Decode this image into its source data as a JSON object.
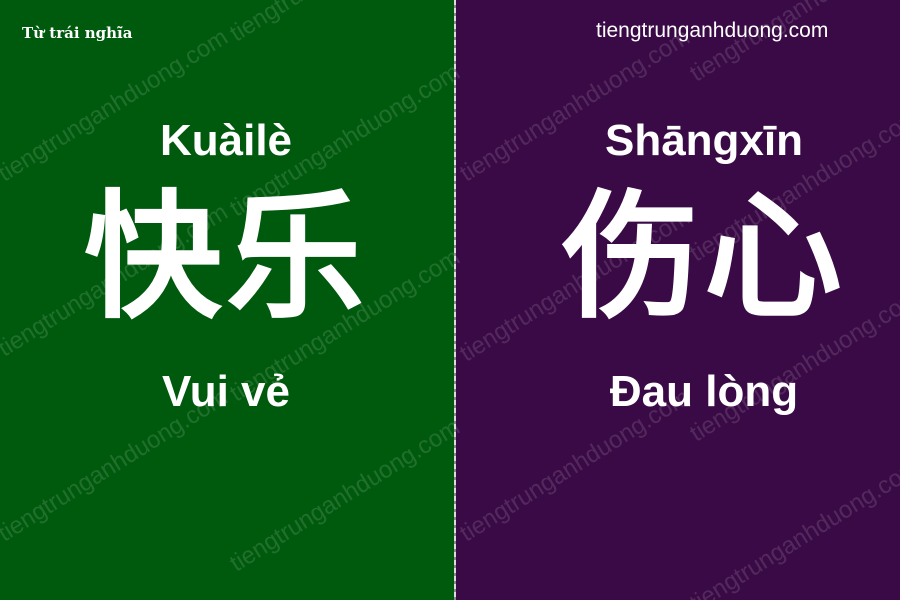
{
  "header": {
    "corner_label": "Từ trái nghĩa",
    "site_name": "tiengtrunganhduong.com"
  },
  "left_card": {
    "pinyin": "Kuàilè",
    "hanzi": "快乐",
    "meaning": "Vui vẻ",
    "background": "#005a0d"
  },
  "right_card": {
    "pinyin": "Shāngxīn",
    "hanzi": "伤心",
    "meaning": "Đau lòng",
    "background": "#3a0a46"
  },
  "watermark": {
    "text": "tiengtrunganhduong.com"
  }
}
